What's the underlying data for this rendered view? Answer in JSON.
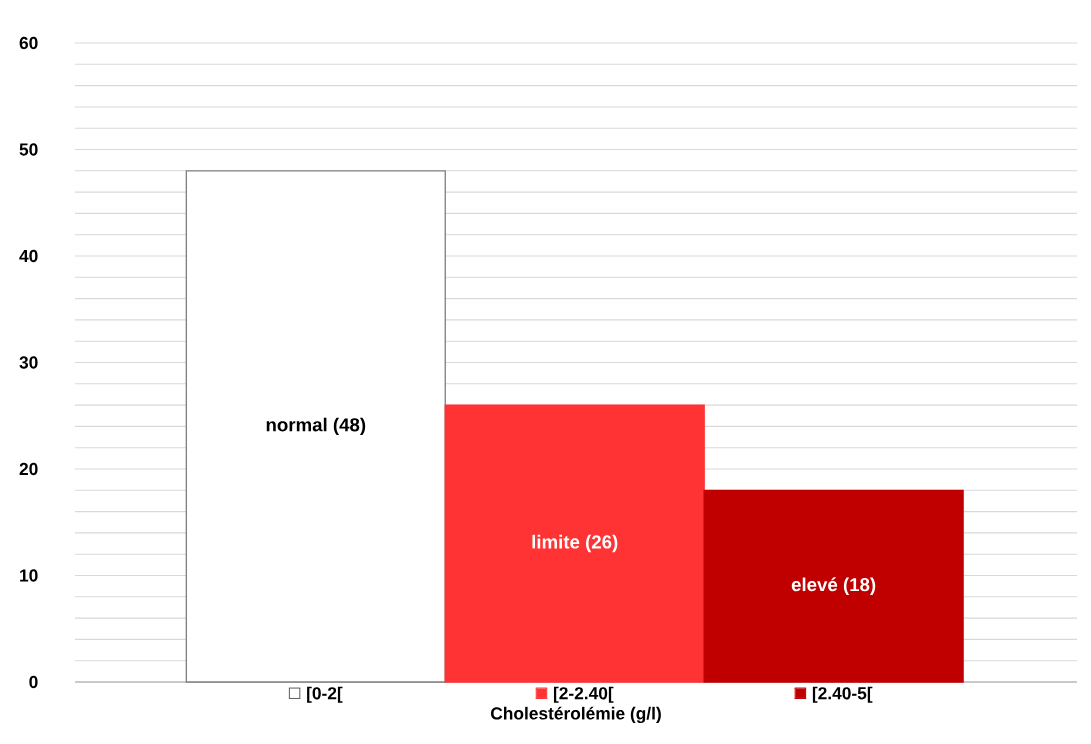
{
  "chart_data": {
    "type": "bar",
    "categories": [
      "[0-2[",
      "[2-2.40[",
      "[2.40-5["
    ],
    "values": [
      48,
      26,
      18
    ],
    "colors": [
      "#ffffff",
      "#ff3333",
      "#c00000"
    ],
    "value_labels": [
      "normal (48)",
      "limite (26)",
      "elevé (18)"
    ],
    "xlabel": "Cholestérolémie (g/l)",
    "ylim": [
      0,
      60
    ],
    "yticks": [
      0,
      {
        "value": 2,
        "label": null
      },
      {
        "value": 4,
        "label": null
      },
      {
        "value": 6,
        "label": null
      },
      {
        "value": 8,
        "label": null
      },
      10,
      {
        "value": 12,
        "label": null
      },
      {
        "value": 14,
        "label": null
      },
      {
        "value": 16,
        "label": null
      },
      {
        "value": 18,
        "label": null
      },
      20,
      {
        "value": 22,
        "label": null
      },
      {
        "value": 24,
        "label": null
      },
      {
        "value": 26,
        "label": null
      },
      {
        "value": 28,
        "label": null
      },
      30,
      {
        "value": 32,
        "label": null
      },
      {
        "value": 34,
        "label": null
      },
      {
        "value": 36,
        "label": null
      },
      {
        "value": 38,
        "label": null
      },
      40,
      {
        "value": 42,
        "label": null
      },
      {
        "value": 44,
        "label": null
      },
      {
        "value": 46,
        "label": null
      },
      {
        "value": 48,
        "label": null
      },
      50,
      {
        "value": 52,
        "label": null
      },
      {
        "value": 54,
        "label": null
      },
      {
        "value": 56,
        "label": null
      },
      {
        "value": 58,
        "label": null
      },
      60
    ],
    "grid": "y"
  }
}
